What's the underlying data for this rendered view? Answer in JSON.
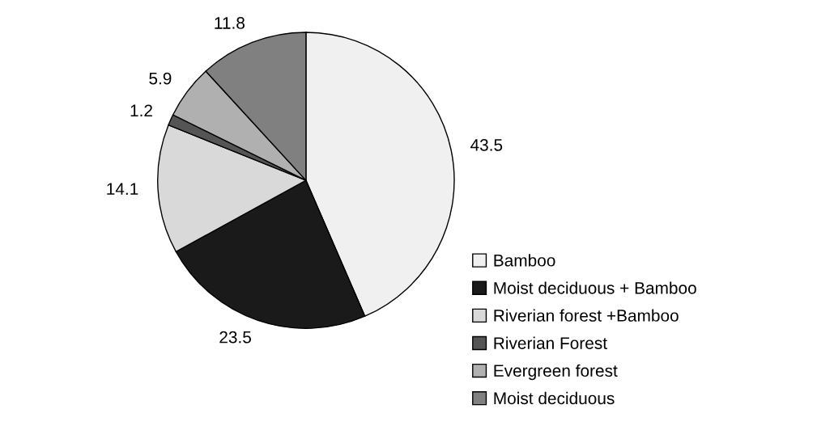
{
  "chart_data": {
    "type": "pie",
    "categories": [
      "Bamboo",
      "Moist deciduous + Bamboo",
      "Riverian forest +Bamboo",
      "Riverian Forest",
      "Evergreen forest",
      "Moist deciduous"
    ],
    "values": [
      43.5,
      23.5,
      14.1,
      1.2,
      5.9,
      11.8
    ],
    "colors": [
      "#f0f0f0",
      "#1a1a1a",
      "#d9d9d9",
      "#555555",
      "#b0b0b0",
      "#808080"
    ],
    "data_labels": true,
    "legend": "right"
  }
}
